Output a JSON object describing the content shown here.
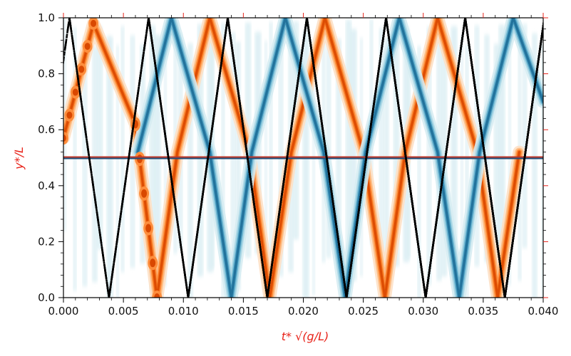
{
  "chart_data": {
    "type": "contour",
    "title": "",
    "xlabel": "t* √(g/L)",
    "ylabel": "y*/L",
    "xlim": [
      0.0,
      0.04
    ],
    "ylim": [
      0.0,
      1.0
    ],
    "x_ticks": [
      "0.000",
      "0.005",
      "0.010",
      "0.015",
      "0.020",
      "0.025",
      "0.030",
      "0.035",
      "0.040"
    ],
    "y_ticks": [
      "0.0",
      "0.2",
      "0.4",
      "0.6",
      "0.8",
      "1.0"
    ],
    "label_color": "#e8241b",
    "colormap": {
      "positive": [
        "#fde0c5",
        "#fdb97d",
        "#fd8d3c",
        "#f16913",
        "#d94801"
      ],
      "negative": [
        "#d6ecf2",
        "#a9d6e5",
        "#6fb6d0",
        "#3a8fb7",
        "#1f6f98"
      ]
    },
    "interface": {
      "y": 0.5,
      "colors": [
        "#c0392b",
        "#1f4e79"
      ]
    },
    "characteristics": {
      "style": "dash-dot",
      "color": "#000000",
      "period": 0.0066,
      "half_period": 0.0033,
      "rising_apexes": [
        0.0005,
        0.0071,
        0.0137,
        0.0203,
        0.0269,
        0.0335,
        0.0401
      ],
      "falling_apexes": [
        -0.0028,
        0.0038,
        0.0104,
        0.017,
        0.0236,
        0.0302,
        0.0368
      ],
      "waves": [
        {
          "series": "positive",
          "points": [
            [
              0.0,
              0.57
            ],
            [
              0.0025,
              0.98
            ],
            [
              0.006,
              0.62
            ],
            [
              0.0078,
              0.0
            ],
            [
              0.0095,
              0.52
            ],
            [
              0.0122,
              1.0
            ],
            [
              0.0155,
              0.52
            ],
            [
              0.0172,
              0.0
            ],
            [
              0.019,
              0.52
            ],
            [
              0.0218,
              1.0
            ],
            [
              0.025,
              0.52
            ],
            [
              0.0268,
              0.0
            ],
            [
              0.0285,
              0.52
            ],
            [
              0.0312,
              1.0
            ],
            [
              0.0345,
              0.52
            ],
            [
              0.0362,
              0.0
            ],
            [
              0.038,
              0.52
            ]
          ]
        },
        {
          "series": "negative",
          "points": [
            [
              0.0062,
              0.52
            ],
            [
              0.009,
              1.0
            ],
            [
              0.0122,
              0.52
            ],
            [
              0.014,
              0.0
            ],
            [
              0.0157,
              0.52
            ],
            [
              0.0185,
              1.0
            ],
            [
              0.0217,
              0.52
            ],
            [
              0.0235,
              0.0
            ],
            [
              0.0252,
              0.52
            ],
            [
              0.028,
              1.0
            ],
            [
              0.0312,
              0.52
            ],
            [
              0.033,
              0.0
            ],
            [
              0.0347,
              0.52
            ],
            [
              0.0375,
              1.0
            ],
            [
              0.04,
              0.7
            ]
          ]
        }
      ]
    }
  }
}
